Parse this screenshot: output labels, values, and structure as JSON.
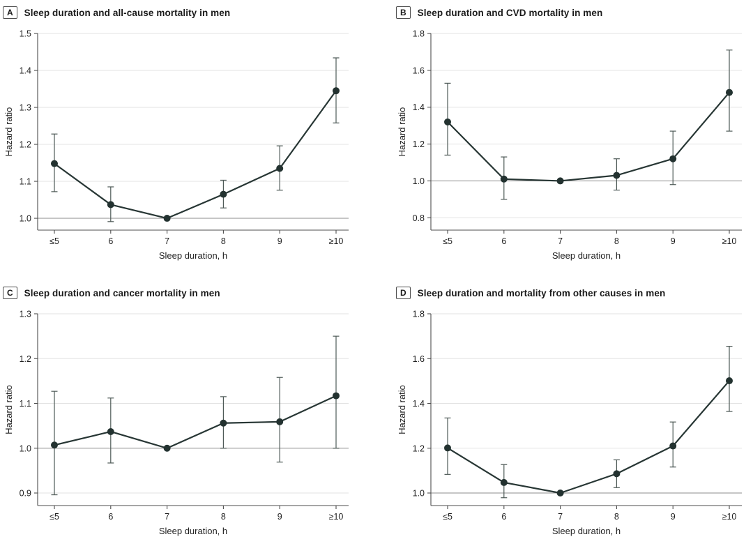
{
  "colors": {
    "line": "#273634",
    "marker": "#233230",
    "error": "#4e5a57",
    "grid": "#e3e3e3",
    "ref_line": "#8c8c8c",
    "axis": "#4d4d4d",
    "text": "#1f1f1f",
    "background": "#ffffff"
  },
  "chart_data": [
    {
      "type": "line",
      "panel_label": "A",
      "title": "Sleep duration and all-cause mortality in men",
      "xlabel": "Sleep duration, h",
      "ylabel": "Hazard ratio",
      "categories": [
        "≤5",
        "6",
        "7",
        "8",
        "9",
        "≥10"
      ],
      "yticks": [
        1.0,
        1.1,
        1.2,
        1.3,
        1.4,
        1.5
      ],
      "ylim": [
        0.968,
        1.5
      ],
      "ref_line": 1.0,
      "grid": true,
      "legend": "none",
      "values": [
        1.148,
        1.037,
        1.0,
        1.065,
        1.135,
        1.345
      ],
      "ci_low": [
        1.072,
        0.991,
        null,
        1.028,
        1.076,
        1.258
      ],
      "ci_high": [
        1.228,
        1.085,
        null,
        1.103,
        1.196,
        1.434
      ]
    },
    {
      "type": "line",
      "panel_label": "B",
      "title": "Sleep duration and CVD mortality in men",
      "xlabel": "Sleep duration, h",
      "ylabel": "Hazard ratio",
      "categories": [
        "≤5",
        "6",
        "7",
        "8",
        "9",
        "≥10"
      ],
      "yticks": [
        0.8,
        1.0,
        1.2,
        1.4,
        1.6,
        1.8
      ],
      "ylim": [
        0.733,
        1.8
      ],
      "ref_line": 1.0,
      "grid": true,
      "legend": "none",
      "values": [
        1.32,
        1.01,
        1.0,
        1.03,
        1.12,
        1.48
      ],
      "ci_low": [
        1.14,
        0.9,
        null,
        0.95,
        0.98,
        1.27
      ],
      "ci_high": [
        1.53,
        1.13,
        null,
        1.12,
        1.27,
        1.71
      ]
    },
    {
      "type": "line",
      "panel_label": "C",
      "title": "Sleep duration and cancer mortality in men",
      "xlabel": "Sleep duration, h",
      "ylabel": "Hazard ratio",
      "categories": [
        "≤5",
        "6",
        "7",
        "8",
        "9",
        "≥10"
      ],
      "yticks": [
        0.9,
        1.0,
        1.1,
        1.2,
        1.3
      ],
      "ylim": [
        0.872,
        1.3
      ],
      "ref_line": 1.0,
      "grid": true,
      "legend": "none",
      "values": [
        1.007,
        1.037,
        1.0,
        1.056,
        1.059,
        1.117
      ],
      "ci_low": [
        0.896,
        0.967,
        null,
        1.0,
        0.969,
        1.0
      ],
      "ci_high": [
        1.127,
        1.112,
        null,
        1.115,
        1.158,
        1.25
      ]
    },
    {
      "type": "line",
      "panel_label": "D",
      "title": "Sleep duration and mortality from other causes in men",
      "xlabel": "Sleep duration, h",
      "ylabel": "Hazard ratio",
      "categories": [
        "≤5",
        "6",
        "7",
        "8",
        "9",
        "≥10"
      ],
      "yticks": [
        1.0,
        1.2,
        1.4,
        1.6,
        1.8
      ],
      "ylim": [
        0.944,
        1.8
      ],
      "ref_line": 1.0,
      "grid": true,
      "legend": "none",
      "values": [
        1.201,
        1.047,
        1.0,
        1.086,
        1.21,
        1.501
      ],
      "ci_low": [
        1.083,
        0.979,
        null,
        1.024,
        1.116,
        1.364
      ],
      "ci_high": [
        1.335,
        1.127,
        null,
        1.148,
        1.317,
        1.655
      ]
    }
  ]
}
